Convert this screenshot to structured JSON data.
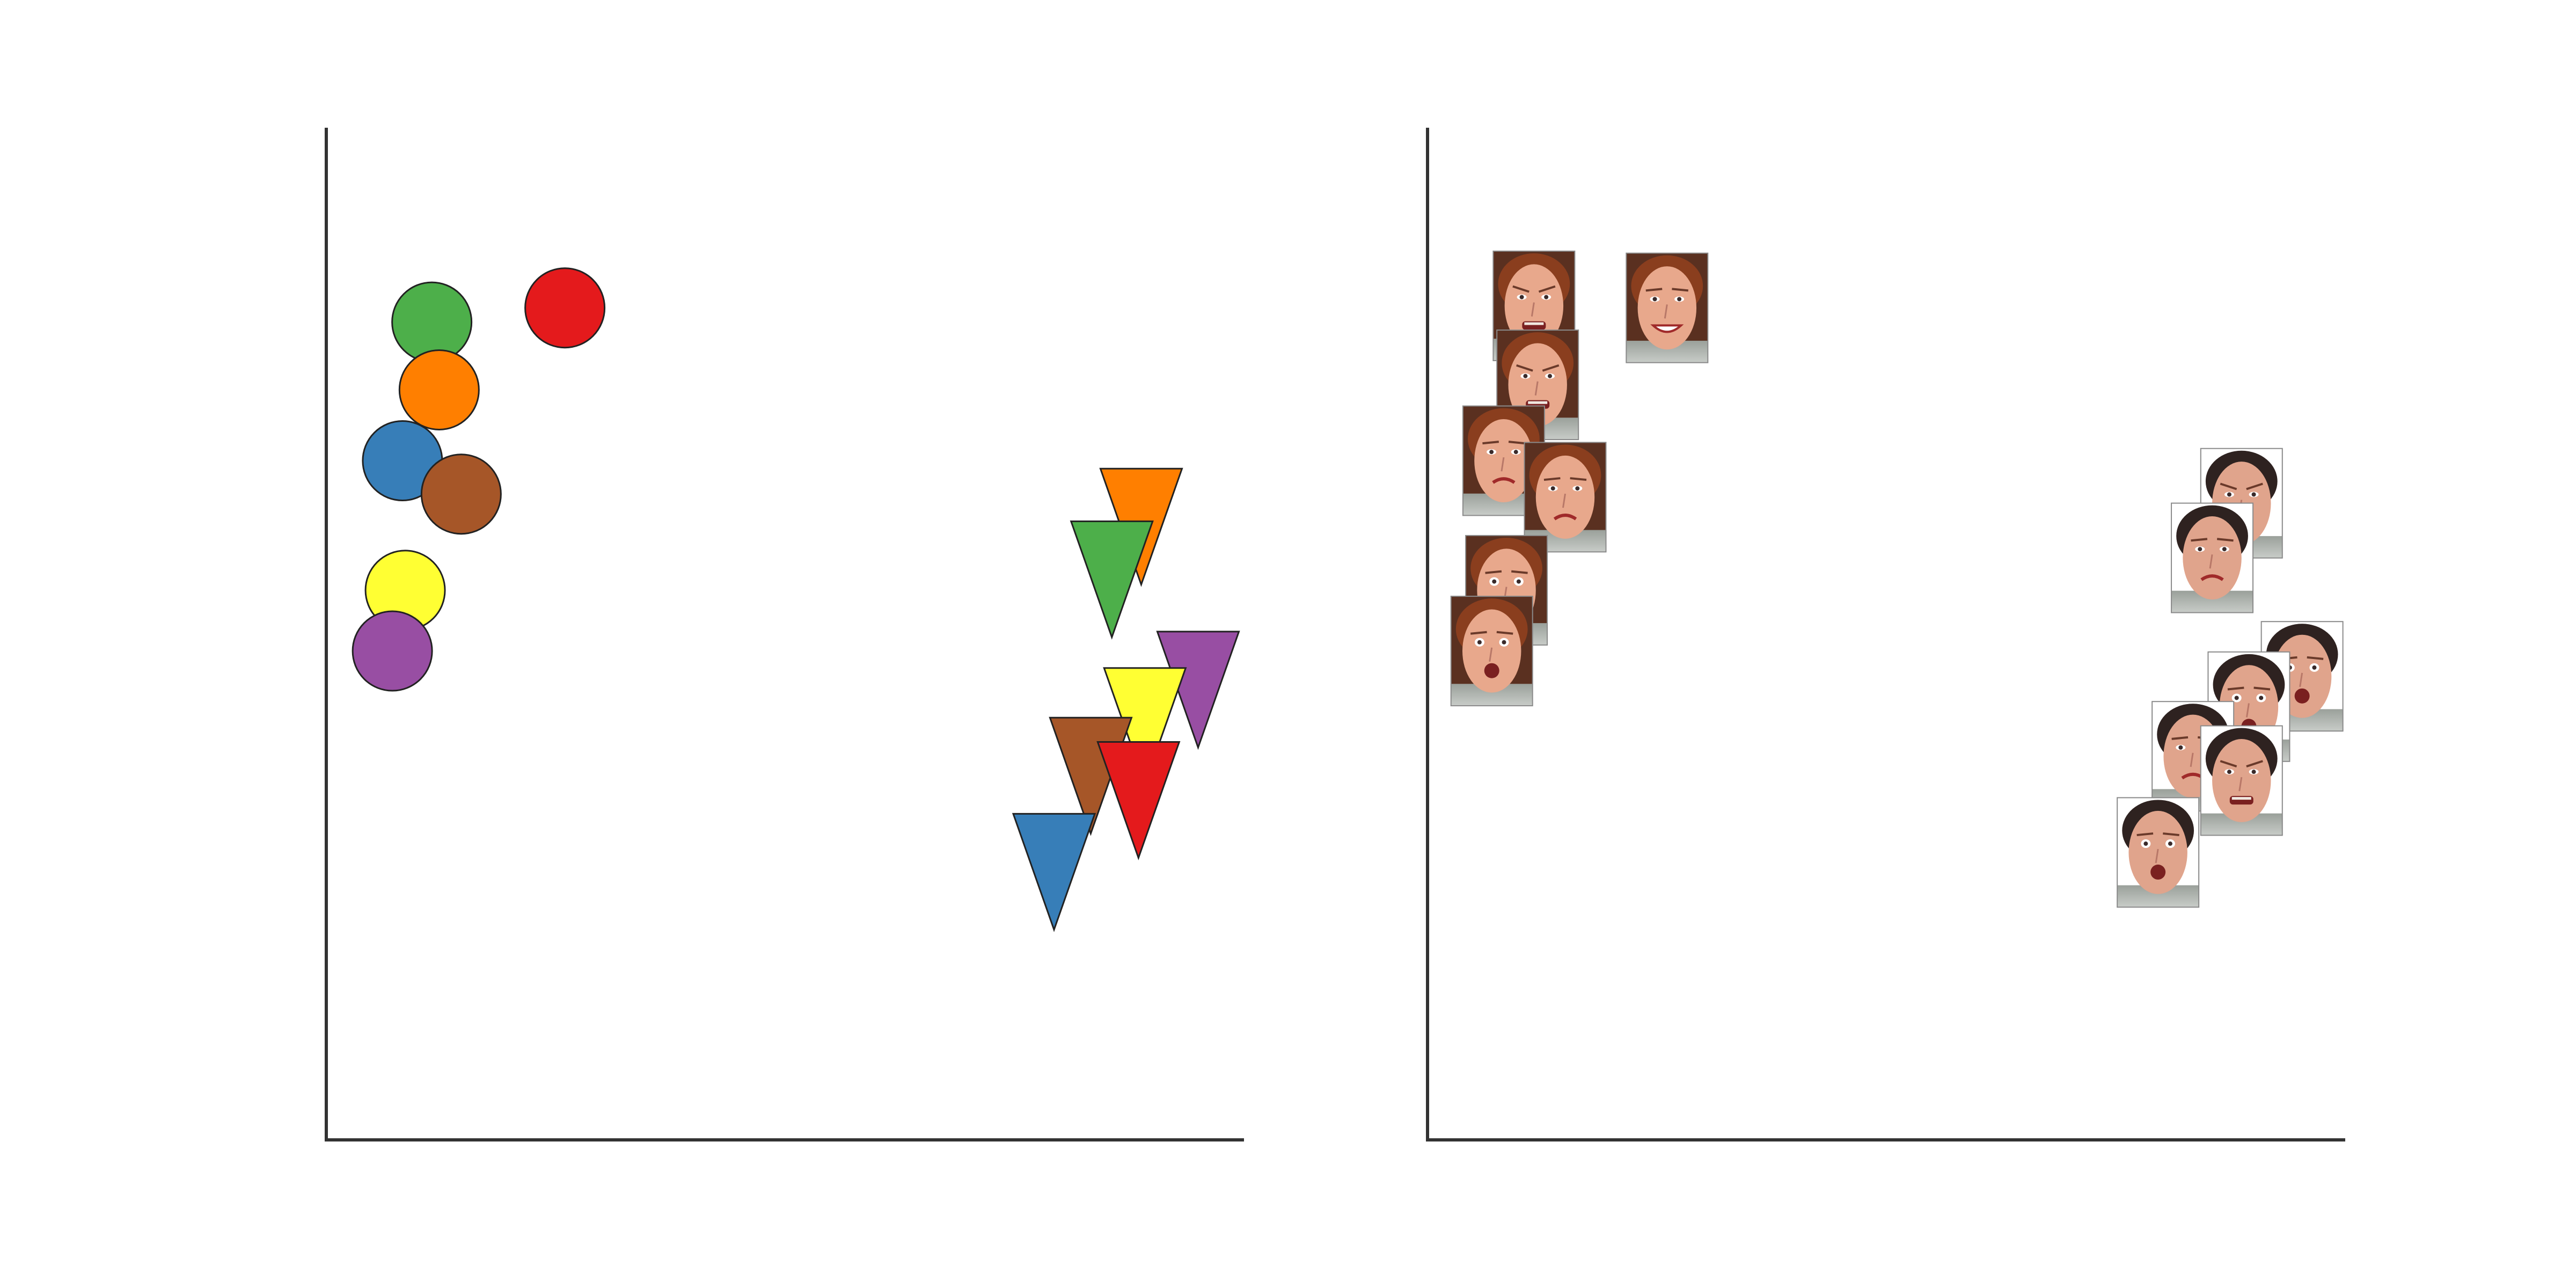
{
  "chart_data": [
    {
      "type": "scatter",
      "title": "",
      "xlabel": "",
      "ylabel": "",
      "xlim": [
        0,
        100
      ],
      "ylim": [
        0,
        100
      ],
      "axes": {
        "visible_spines": [
          "left",
          "bottom"
        ],
        "ticks": false,
        "grid": false
      },
      "legend": "none",
      "series": [
        {
          "marker": "circle",
          "points": [
            {
              "x": 11.5,
              "y": 80.8,
              "color": "#4daf4a"
            },
            {
              "x": 26.0,
              "y": 82.2,
              "color": "#e41a1c"
            },
            {
              "x": 12.3,
              "y": 74.1,
              "color": "#ff7f00"
            },
            {
              "x": 8.3,
              "y": 67.1,
              "color": "#377eb8"
            },
            {
              "x": 14.7,
              "y": 63.8,
              "color": "#a65628"
            },
            {
              "x": 8.6,
              "y": 54.3,
              "color": "#ffff33"
            },
            {
              "x": 7.2,
              "y": 48.3,
              "color": "#984ea3"
            }
          ]
        },
        {
          "marker": "triangle-down",
          "points": [
            {
              "x": 88.8,
              "y": 62.5,
              "color": "#ff7f00"
            },
            {
              "x": 85.6,
              "y": 57.3,
              "color": "#4daf4a"
            },
            {
              "x": 95.0,
              "y": 46.4,
              "color": "#984ea3"
            },
            {
              "x": 89.2,
              "y": 42.8,
              "color": "#ffff33"
            },
            {
              "x": 83.3,
              "y": 37.9,
              "color": "#a65628"
            },
            {
              "x": 88.5,
              "y": 35.5,
              "color": "#e41a1c"
            },
            {
              "x": 79.3,
              "y": 28.4,
              "color": "#377eb8"
            }
          ]
        }
      ]
    },
    {
      "type": "scatter",
      "title": "",
      "xlabel": "",
      "ylabel": "",
      "xlim": [
        0,
        100
      ],
      "ylim": [
        0,
        100
      ],
      "axes": {
        "visible_spines": [
          "left",
          "bottom"
        ],
        "ticks": false,
        "grid": false
      },
      "legend": "none",
      "marker": "face-thumbnail",
      "series": [
        {
          "face": "female",
          "points": [
            {
              "x": 11.6,
              "y": 82.4,
              "expression": "angry"
            },
            {
              "x": 26.1,
              "y": 82.2,
              "expression": "happy"
            },
            {
              "x": 12.0,
              "y": 74.6,
              "expression": "disgust"
            },
            {
              "x": 8.3,
              "y": 67.1,
              "expression": "sad"
            },
            {
              "x": 15.0,
              "y": 63.5,
              "expression": "sad"
            },
            {
              "x": 8.6,
              "y": 54.3,
              "expression": "fear"
            },
            {
              "x": 7.0,
              "y": 48.3,
              "expression": "surprise"
            }
          ]
        },
        {
          "face": "male",
          "points": [
            {
              "x": 88.7,
              "y": 62.9,
              "expression": "disgust"
            },
            {
              "x": 85.5,
              "y": 57.5,
              "expression": "sad"
            },
            {
              "x": 95.3,
              "y": 45.8,
              "expression": "surprise"
            },
            {
              "x": 89.5,
              "y": 42.8,
              "expression": "fear"
            },
            {
              "x": 83.4,
              "y": 37.9,
              "expression": "sad"
            },
            {
              "x": 88.7,
              "y": 35.5,
              "expression": "angry"
            },
            {
              "x": 79.6,
              "y": 28.4,
              "expression": "fear"
            }
          ]
        }
      ]
    }
  ]
}
